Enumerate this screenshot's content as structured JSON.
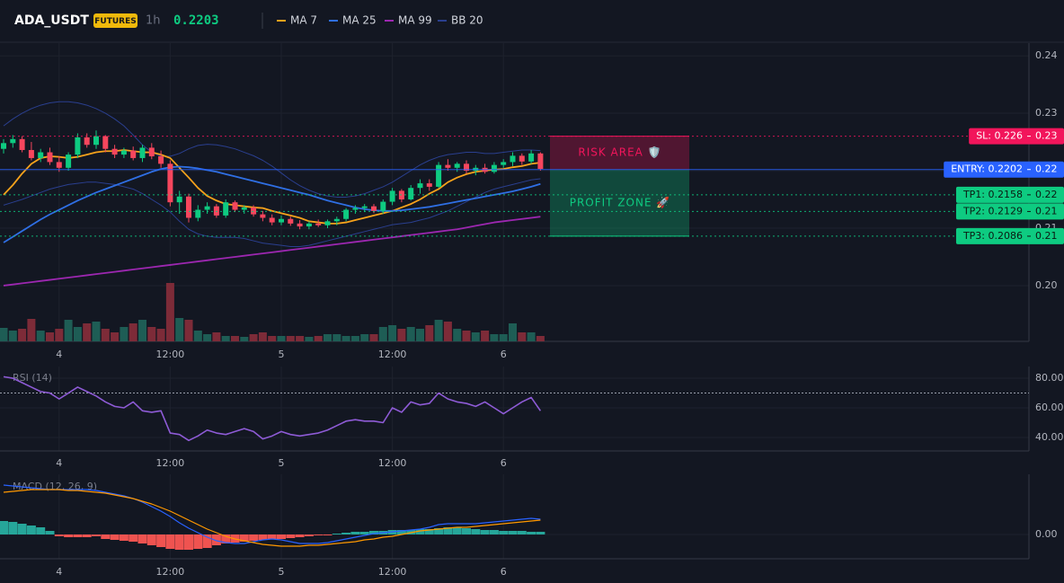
{
  "chart_data": [
    {
      "type": "candlestick",
      "title": "ADA_USDT",
      "badge": "FUTURES",
      "interval": "1h",
      "last_price": 0.2203,
      "categories": [
        null,
        null,
        null,
        null,
        null,
        null,
        "4",
        null,
        null,
        null,
        null,
        null,
        null,
        null,
        null,
        null,
        null,
        null,
        "12:00",
        null,
        null,
        null,
        null,
        null,
        null,
        null,
        null,
        null,
        null,
        null,
        "5",
        null,
        null,
        null,
        null,
        null,
        null,
        null,
        null,
        null,
        null,
        null,
        "12:00",
        null,
        null,
        null,
        null,
        null,
        null,
        null,
        null,
        null,
        null,
        null,
        "6",
        null,
        null,
        null,
        null
      ],
      "open": [
        0.2238,
        0.2248,
        0.2255,
        0.2236,
        0.2222,
        0.2232,
        0.2215,
        0.2205,
        0.2228,
        0.2258,
        0.2245,
        0.226,
        0.2238,
        0.2228,
        0.2235,
        0.2222,
        0.224,
        0.2225,
        0.2212,
        0.2145,
        0.2155,
        0.2118,
        0.2132,
        0.2138,
        0.2122,
        0.2145,
        0.2132,
        0.2136,
        0.2124,
        0.2118,
        0.211,
        0.2116,
        0.2108,
        0.2103,
        0.2108,
        0.2105,
        0.2112,
        0.2116,
        0.2132,
        0.2135,
        0.2138,
        0.213,
        0.2146,
        0.2165,
        0.215,
        0.217,
        0.2178,
        0.2172,
        0.221,
        0.2205,
        0.2212,
        0.22,
        0.2205,
        0.2198,
        0.221,
        0.2215,
        0.2226,
        0.2216,
        0.223
      ],
      "high": [
        0.2255,
        0.2262,
        0.226,
        0.225,
        0.2238,
        0.224,
        0.2225,
        0.2232,
        0.2265,
        0.2265,
        0.227,
        0.2262,
        0.2245,
        0.224,
        0.2242,
        0.2245,
        0.2248,
        0.2235,
        0.2218,
        0.2165,
        0.216,
        0.214,
        0.2145,
        0.2142,
        0.215,
        0.2148,
        0.214,
        0.214,
        0.213,
        0.2124,
        0.2122,
        0.212,
        0.2114,
        0.2112,
        0.2115,
        0.2115,
        0.212,
        0.2135,
        0.214,
        0.2142,
        0.2142,
        0.215,
        0.217,
        0.2168,
        0.2175,
        0.2185,
        0.2185,
        0.2215,
        0.222,
        0.2215,
        0.2218,
        0.221,
        0.2212,
        0.2215,
        0.222,
        0.2232,
        0.223,
        0.2236,
        0.2232
      ],
      "low": [
        0.223,
        0.224,
        0.2232,
        0.2218,
        0.2215,
        0.221,
        0.2198,
        0.22,
        0.2222,
        0.224,
        0.2238,
        0.2232,
        0.2222,
        0.2222,
        0.2218,
        0.2215,
        0.222,
        0.2205,
        0.2138,
        0.2125,
        0.211,
        0.2112,
        0.2125,
        0.2118,
        0.2118,
        0.2128,
        0.2125,
        0.212,
        0.2112,
        0.2105,
        0.2105,
        0.2104,
        0.2098,
        0.2098,
        0.2102,
        0.21,
        0.2105,
        0.2112,
        0.2125,
        0.2128,
        0.2126,
        0.2125,
        0.214,
        0.2145,
        0.2148,
        0.216,
        0.2165,
        0.217,
        0.22,
        0.2198,
        0.2195,
        0.2192,
        0.2195,
        0.2195,
        0.2205,
        0.2208,
        0.221,
        0.2212,
        0.22
      ],
      "close": [
        0.2248,
        0.2255,
        0.2236,
        0.2222,
        0.2232,
        0.2215,
        0.2205,
        0.2228,
        0.2258,
        0.2245,
        0.226,
        0.2238,
        0.2228,
        0.2235,
        0.2222,
        0.224,
        0.2225,
        0.2212,
        0.2145,
        0.2155,
        0.2118,
        0.2132,
        0.2138,
        0.2122,
        0.2145,
        0.2132,
        0.2136,
        0.2124,
        0.2118,
        0.211,
        0.2116,
        0.2108,
        0.2103,
        0.2108,
        0.2105,
        0.2112,
        0.2116,
        0.2132,
        0.2135,
        0.2138,
        0.213,
        0.2146,
        0.2165,
        0.215,
        0.217,
        0.2178,
        0.2172,
        0.221,
        0.2205,
        0.2212,
        0.22,
        0.2205,
        0.2198,
        0.221,
        0.2215,
        0.2226,
        0.2216,
        0.223,
        0.2203
      ],
      "volume": [
        15,
        12,
        14,
        25,
        12,
        10,
        14,
        24,
        16,
        20,
        22,
        14,
        10,
        16,
        20,
        24,
        16,
        14,
        65,
        26,
        24,
        12,
        8,
        10,
        6,
        6,
        5,
        8,
        10,
        6,
        6,
        6,
        6,
        5,
        6,
        8,
        8,
        6,
        6,
        8,
        8,
        16,
        18,
        14,
        16,
        14,
        18,
        24,
        22,
        14,
        12,
        10,
        12,
        8,
        8,
        20,
        10,
        10,
        6
      ],
      "up_color": "#0ecb81",
      "down_color": "#f6465d",
      "volume_up_color": "#1e5d55",
      "volume_down_color": "#7d2b38",
      "series": [
        {
          "name": "MA 7",
          "color": "#f7a21b",
          "values": [
            0.2158,
            0.2175,
            0.2195,
            0.2212,
            0.2222,
            0.2225,
            0.2224,
            0.2222,
            0.2224,
            0.2228,
            0.2232,
            0.2234,
            0.2234,
            0.2236,
            0.2234,
            0.2232,
            0.2232,
            0.2228,
            0.2222,
            0.2205,
            0.2188,
            0.217,
            0.2156,
            0.2148,
            0.2142,
            0.214,
            0.2138,
            0.2136,
            0.2135,
            0.213,
            0.2126,
            0.2122,
            0.2118,
            0.2112,
            0.211,
            0.2108,
            0.2108,
            0.211,
            0.2114,
            0.2118,
            0.2122,
            0.2126,
            0.213,
            0.2136,
            0.2142,
            0.215,
            0.216,
            0.2168,
            0.218,
            0.2188,
            0.2194,
            0.2198,
            0.22,
            0.2202,
            0.2203,
            0.2206,
            0.2208,
            0.2212,
            0.2214
          ]
        },
        {
          "name": "MA 25",
          "color": "#2f6fe4",
          "values": [
            0.2075,
            0.2085,
            0.2095,
            0.2105,
            0.2115,
            0.2124,
            0.2132,
            0.214,
            0.2148,
            0.2155,
            0.2162,
            0.2168,
            0.2174,
            0.218,
            0.2186,
            0.2192,
            0.2198,
            0.2203,
            0.2206,
            0.2207,
            0.2206,
            0.2204,
            0.2201,
            0.2198,
            0.2194,
            0.219,
            0.2186,
            0.2182,
            0.2178,
            0.2174,
            0.217,
            0.2166,
            0.2162,
            0.2158,
            0.2153,
            0.2148,
            0.2144,
            0.214,
            0.2136,
            0.2133,
            0.2131,
            0.213,
            0.213,
            0.2131,
            0.2133,
            0.2135,
            0.2137,
            0.214,
            0.2143,
            0.2146,
            0.2149,
            0.2152,
            0.2155,
            0.2158,
            0.2161,
            0.2164,
            0.2168,
            0.2172,
            0.2177
          ]
        },
        {
          "name": "MA 99",
          "color": "#9c27b0",
          "values": [
            0.2,
            0.2002,
            0.2004,
            0.2006,
            0.2008,
            0.201,
            0.2012,
            0.2014,
            0.2016,
            0.2018,
            0.202,
            0.2022,
            0.2024,
            0.2026,
            0.2028,
            0.203,
            0.2032,
            0.2034,
            0.2036,
            0.2038,
            0.204,
            0.2042,
            0.2044,
            0.2046,
            0.2048,
            0.205,
            0.2052,
            0.2054,
            0.2056,
            0.2058,
            0.206,
            0.2062,
            0.2064,
            0.2066,
            0.2068,
            0.207,
            0.2072,
            0.2074,
            0.2076,
            0.2078,
            0.208,
            0.2082,
            0.2084,
            0.2086,
            0.2088,
            0.209,
            0.2092,
            0.2094,
            0.2096,
            0.2098,
            0.2101,
            0.2104,
            0.2107,
            0.211,
            0.2112,
            0.2114,
            0.2116,
            0.2118,
            0.212
          ]
        },
        {
          "name": "BB 20",
          "color": "#2a3f8f",
          "upper": [
            0.2278,
            0.229,
            0.23,
            0.2308,
            0.2314,
            0.2318,
            0.232,
            0.232,
            0.2318,
            0.2314,
            0.2308,
            0.23,
            0.229,
            0.2278,
            0.2262,
            0.2245,
            0.2232,
            0.2225,
            0.2225,
            0.223,
            0.2238,
            0.2244,
            0.2246,
            0.2245,
            0.2242,
            0.2238,
            0.2232,
            0.2226,
            0.2218,
            0.2208,
            0.2196,
            0.2184,
            0.2174,
            0.2166,
            0.216,
            0.2156,
            0.2154,
            0.2154,
            0.2156,
            0.216,
            0.2166,
            0.2172,
            0.218,
            0.219,
            0.22,
            0.221,
            0.2218,
            0.2224,
            0.2228,
            0.223,
            0.2232,
            0.2232,
            0.223,
            0.223,
            0.2232,
            0.2234,
            0.2236,
            0.2236,
            0.2235
          ],
          "lower": [
            0.214,
            0.2145,
            0.215,
            0.2156,
            0.2162,
            0.2168,
            0.2172,
            0.2176,
            0.2178,
            0.218,
            0.218,
            0.2178,
            0.2176,
            0.2172,
            0.2168,
            0.216,
            0.215,
            0.214,
            0.2128,
            0.2112,
            0.2098,
            0.209,
            0.2086,
            0.2084,
            0.2084,
            0.2084,
            0.2082,
            0.2078,
            0.2074,
            0.2072,
            0.207,
            0.2068,
            0.2068,
            0.207,
            0.2074,
            0.2078,
            0.2082,
            0.2086,
            0.209,
            0.2094,
            0.2098,
            0.2102,
            0.2106,
            0.2108,
            0.211,
            0.2114,
            0.2118,
            0.2124,
            0.213,
            0.2138,
            0.2146,
            0.2154,
            0.2162,
            0.2168,
            0.2172,
            0.2176,
            0.218,
            0.2184,
            0.2186
          ]
        }
      ],
      "levels": [
        {
          "label": "SL: 0.226",
          "value": 0.226,
          "tag": "0.23",
          "color": "#f2155b",
          "text_color": "#ffffff",
          "dashed": true
        },
        {
          "label": "ENTRY: 0.2202",
          "value": 0.2202,
          "tag": "0.22",
          "color": "#2962ff",
          "text_color": "#ffffff",
          "dashed": false
        },
        {
          "label": "TP1: 0.2158",
          "value": 0.2158,
          "tag": "0.22",
          "color": "#0ecb81",
          "text_color": "#0b1a12",
          "dashed": true
        },
        {
          "label": "TP2: 0.2129",
          "value": 0.2129,
          "tag": "0.21",
          "color": "#0ecb81",
          "text_color": "#0b1a12",
          "dashed": true
        },
        {
          "label": "TP3: 0.2086",
          "value": 0.2086,
          "tag": "0.21",
          "color": "#0ecb81",
          "text_color": "#0b1a12",
          "dashed": true
        }
      ],
      "zones": [
        {
          "label": "RISK AREA 🛡️",
          "from": 0.2202,
          "to": 0.226,
          "color": "#f2155b"
        },
        {
          "label": "PROFIT ZONE 🚀",
          "from": 0.2202,
          "to": 0.2086,
          "color": "#0ecb81"
        }
      ],
      "ylim": [
        0.1903,
        0.2422
      ],
      "yticks": [
        {
          "value": 0.2,
          "label": "0.20"
        },
        0.21,
        0.22,
        0.23,
        0.24
      ],
      "grid": true
    },
    {
      "type": "line",
      "title": "RSI (14)",
      "color": "#8e5bd6",
      "categories": [
        null,
        null,
        null,
        null,
        null,
        null,
        "4",
        null,
        null,
        null,
        null,
        null,
        null,
        null,
        null,
        null,
        null,
        null,
        "12:00",
        null,
        null,
        null,
        null,
        null,
        null,
        null,
        null,
        null,
        null,
        null,
        "5",
        null,
        null,
        null,
        null,
        null,
        null,
        null,
        null,
        null,
        null,
        null,
        "12:00",
        null,
        null,
        null,
        null,
        null,
        null,
        null,
        null,
        null,
        null,
        null,
        "6",
        null,
        null,
        null,
        null
      ],
      "values": [
        81,
        80,
        77,
        74,
        71,
        70,
        66,
        70,
        74,
        71,
        68,
        64,
        61,
        60,
        64,
        58,
        57,
        58,
        43,
        42,
        38,
        41,
        45,
        43,
        42,
        44,
        46,
        44,
        39,
        41,
        44,
        42,
        41,
        42,
        43,
        45,
        48,
        51,
        52,
        51,
        51,
        50,
        60,
        57,
        64,
        62,
        63,
        70,
        66,
        64,
        63,
        61,
        64,
        60,
        56,
        60,
        64,
        67,
        58
      ],
      "hlines": [
        70
      ],
      "ylim": [
        30.9,
        87.9
      ],
      "yticks": [
        {
          "value": 40,
          "label": "40.00"
        },
        {
          "value": 60,
          "label": "60.00"
        },
        {
          "value": 80,
          "label": "80.00"
        }
      ],
      "grid": true
    },
    {
      "type": "macd",
      "title": "MACD (12, 26, 9)",
      "macd_color": "#2962ff",
      "signal_color": "#ff9800",
      "hist_up_color": "#26a69a",
      "hist_down_color": "#ef5350",
      "categories": [
        null,
        null,
        null,
        null,
        null,
        null,
        "4",
        null,
        null,
        null,
        null,
        null,
        null,
        null,
        null,
        null,
        null,
        null,
        "12:00",
        null,
        null,
        null,
        null,
        null,
        null,
        null,
        null,
        null,
        null,
        null,
        "5",
        null,
        null,
        null,
        null,
        null,
        null,
        null,
        null,
        null,
        null,
        null,
        "12:00",
        null,
        null,
        null,
        null,
        null,
        null,
        null,
        null,
        null,
        null,
        null,
        "6",
        null,
        null,
        null,
        null
      ],
      "macd": [
        0.0055,
        0.0054,
        0.0053,
        0.0052,
        0.0051,
        0.005,
        0.005,
        0.005,
        0.005,
        0.005,
        0.0049,
        0.0047,
        0.0045,
        0.0043,
        0.004,
        0.0036,
        0.0031,
        0.0026,
        0.002,
        0.0013,
        0.0007,
        0.0002,
        -0.0003,
        -0.0007,
        -0.0009,
        -0.001,
        -0.001,
        -0.0008,
        -0.0006,
        -0.0005,
        -0.0006,
        -0.0008,
        -0.001,
        -0.001,
        -0.001,
        -0.0009,
        -0.0007,
        -0.0005,
        -0.0003,
        -0.0001,
        0.0001,
        0.0002,
        0.0003,
        0.0004,
        0.0005,
        0.0006,
        0.0008,
        0.0011,
        0.0012,
        0.0012,
        0.0012,
        0.0012,
        0.0013,
        0.0014,
        0.0015,
        0.0016,
        0.0017,
        0.0018,
        0.0017
      ],
      "signal": [
        0.0047,
        0.0048,
        0.0049,
        0.005,
        0.005,
        0.005,
        0.005,
        0.0049,
        0.0049,
        0.0048,
        0.0047,
        0.0046,
        0.0044,
        0.0042,
        0.004,
        0.0037,
        0.0034,
        0.003,
        0.0026,
        0.0021,
        0.0016,
        0.0011,
        0.0006,
        0.0002,
        -0.0002,
        -0.0005,
        -0.0007,
        -0.0009,
        -0.0011,
        -0.0012,
        -0.0013,
        -0.0013,
        -0.0013,
        -0.0012,
        -0.0012,
        -0.0011,
        -0.001,
        -0.0009,
        -0.0008,
        -0.0006,
        -0.0005,
        -0.0003,
        -0.0002,
        0,
        0.0002,
        0.0004,
        0.0005,
        0.0006,
        0.0007,
        0.0008,
        0.0008,
        0.0009,
        0.001,
        0.0011,
        0.0012,
        0.0013,
        0.0014,
        0.0015,
        0.0016
      ],
      "histogram": [
        0.0015,
        0.0014,
        0.0012,
        0.001,
        0.0008,
        0.0004,
        -0.0002,
        -0.0003,
        -0.0003,
        -0.0003,
        -0.0002,
        -0.0005,
        -0.0006,
        -0.0007,
        -0.0008,
        -0.001,
        -0.0012,
        -0.0014,
        -0.0016,
        -0.0017,
        -0.0017,
        -0.0016,
        -0.0015,
        -0.0012,
        -0.001,
        -0.0009,
        -0.0008,
        -0.0007,
        -0.0006,
        -0.0005,
        -0.0005,
        -0.0004,
        -0.0003,
        -0.0002,
        -0.0001,
        -0.0001,
        0.0001,
        0.0002,
        0.0003,
        0.0003,
        0.0004,
        0.0004,
        0.0005,
        0.0005,
        0.0005,
        0.0006,
        0.0006,
        0.0007,
        0.0008,
        0.0008,
        0.0007,
        0.0006,
        0.0005,
        0.0005,
        0.0004,
        0.0004,
        0.0004,
        0.0003,
        0.0003
      ],
      "ylim": [
        -0.0027,
        0.0067
      ],
      "yticks": [
        {
          "value": 0,
          "label": "0.00"
        }
      ],
      "grid": true
    }
  ]
}
